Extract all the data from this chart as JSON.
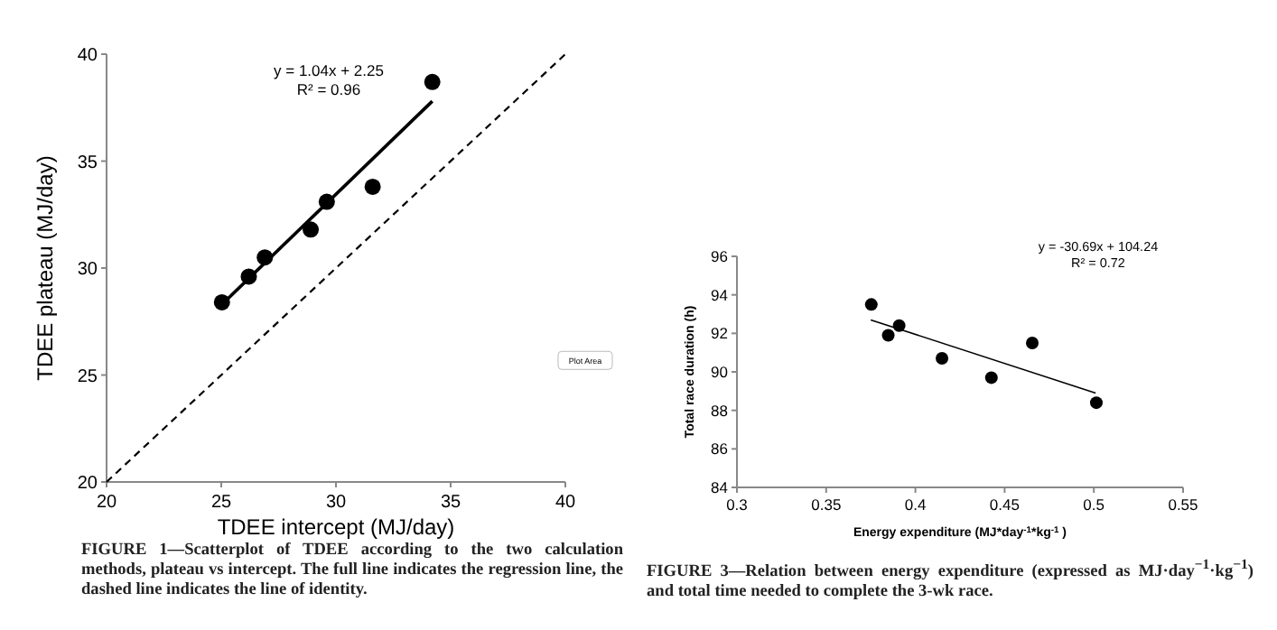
{
  "chart_data": [
    {
      "type": "scatter",
      "xlabel": "TDEE intercept (MJ/day)",
      "ylabel": "TDEE plateau (MJ/day)",
      "xlim": [
        20,
        40
      ],
      "ylim": [
        20,
        40
      ],
      "xticks": [
        20,
        25,
        30,
        35,
        40
      ],
      "yticks": [
        20,
        25,
        30,
        35,
        40
      ],
      "grid": false,
      "marker": "circle",
      "series": [
        {
          "color": "#000000",
          "x": [
            25.03,
            26.2,
            26.9,
            28.9,
            29.6,
            31.6,
            34.2
          ],
          "values": [
            28.4,
            29.6,
            30.5,
            31.8,
            33.1,
            33.8,
            38.7
          ]
        },
        {
          "type": "line",
          "color": "#000000",
          "line_style": "solid",
          "marker": "none",
          "x": [
            25.03,
            34.2
          ],
          "values": [
            28.3,
            37.8
          ]
        },
        {
          "type": "line",
          "color": "#000000",
          "line_style": "dashed",
          "marker": "none",
          "x": [
            20,
            40
          ],
          "values": [
            20,
            40
          ]
        }
      ],
      "annotations": [
        "y = 1.04x + 2.25",
        "R² = 0.96",
        "Plot Area",
        "FIGURE 1—Scatterplot of TDEE according to the two calculation methods, plateau vs intercept. The full line indicates the regression line, the dashed line indicates the line of identity."
      ]
    },
    {
      "type": "scatter",
      "xlabel": "Energy expenditure (MJ*day$^{-1}$*kg$^{-1}$ )",
      "ylabel": "Total  race duration (h)",
      "xlim": [
        0.3,
        0.55
      ],
      "ylim": [
        84,
        96
      ],
      "xticks": [
        0.3,
        0.35,
        0.4,
        0.45,
        0.5,
        0.55
      ],
      "yticks": [
        84,
        86,
        88,
        90,
        92,
        94,
        96
      ],
      "grid": false,
      "marker": "circle",
      "series": [
        {
          "color": "#000000",
          "x": [
            0.3753,
            0.3848,
            0.3909,
            0.4149,
            0.4426,
            0.4655,
            0.5014
          ],
          "values": [
            93.5,
            91.9,
            92.4,
            90.7,
            89.7,
            91.5,
            88.4
          ]
        },
        {
          "type": "line",
          "color": "#000000",
          "line_style": "solid",
          "marker": "none",
          "x": [
            0.375,
            0.501
          ],
          "values": [
            92.7,
            88.9
          ]
        }
      ],
      "annotations": [
        "y = -30.69x + 104.24",
        "R² = 0.72",
        "FIGURE 3—Relation between energy expenditure (expressed as MJ·day$^{−1}$·kg$^{−1}$) and total time needed to complete the 3-wk race."
      ]
    }
  ]
}
